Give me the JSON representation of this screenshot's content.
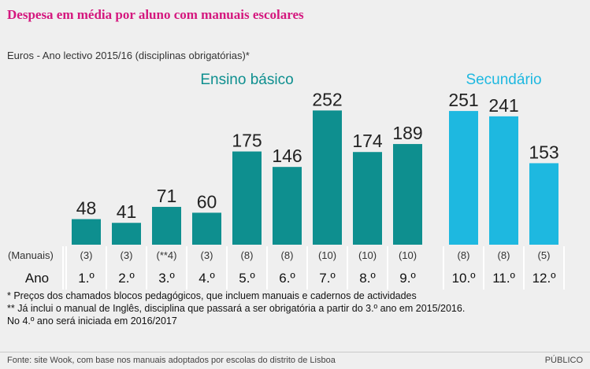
{
  "header": {
    "title": "Despesa em média por aluno com manuais escolares",
    "subtitle": "Euros - Ano lectivo 2015/16 (disciplinas obrigatórias)*"
  },
  "colors": {
    "basico": "#0e8f8f",
    "secundario": "#1eb8e0",
    "title": "#d4177e",
    "background": "#efefef"
  },
  "chart_data": {
    "type": "bar",
    "title": "Despesa em média por aluno com manuais escolares",
    "ylabel": "Euros",
    "ylim": [
      0,
      260
    ],
    "grid": false,
    "row_labels": {
      "manuals": "(Manuais)",
      "year": "Ano"
    },
    "groups": [
      {
        "name": "Ensino básico",
        "color": "#0e8f8f",
        "categories": [
          "1.º",
          "2.º",
          "3.º",
          "4.º",
          "5.º",
          "6.º",
          "7.º",
          "8.º",
          "9.º"
        ],
        "values": [
          48,
          41,
          71,
          60,
          175,
          146,
          252,
          174,
          189
        ],
        "manuals": [
          "(3)",
          "(3)",
          "(**4)",
          "(3)",
          "(8)",
          "(8)",
          "(10)",
          "(10)",
          "(10)"
        ]
      },
      {
        "name": "Secundário",
        "color": "#1eb8e0",
        "categories": [
          "10.º",
          "11.º",
          "12.º"
        ],
        "values": [
          251,
          241,
          153
        ],
        "manuals": [
          "(8)",
          "(8)",
          "(5)"
        ]
      }
    ]
  },
  "footnotes": [
    "* Preços dos chamados blocos pedagógicos, que incluem manuais e cadernos de actividades",
    "** Já inclui o manual de Inglês, disciplina que passará a ser obrigatória a partir do 3.º ano em 2015/2016.",
    "No 4.º ano será iniciada em 2016/2017"
  ],
  "footer": {
    "source": "Fonte: site Wook, com base nos manuais adoptados por escolas do distrito de Lisboa",
    "publisher": "PÚBLICO"
  }
}
